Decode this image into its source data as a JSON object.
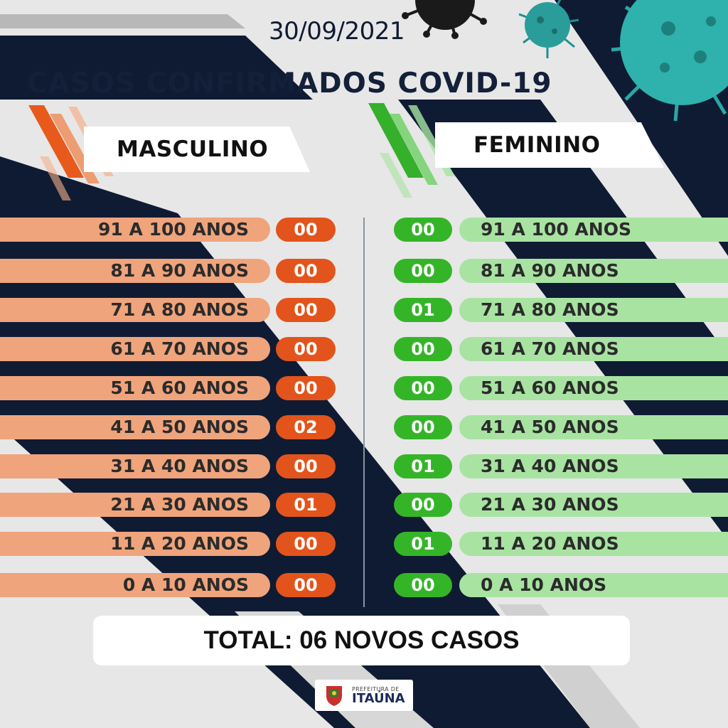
{
  "date": "30/09/2021",
  "title": "CASOS CONFIRMADOS COVID-19",
  "colors": {
    "male_bar": "#f0a47c",
    "male_pill": "#e2541b",
    "female_bar": "#a8e3a2",
    "female_pill": "#34b528",
    "navy": "#0f1b33"
  },
  "masculino": {
    "header": "MASCULINO",
    "rows": [
      {
        "age": "91 A 100 ANOS",
        "count": "00"
      },
      {
        "age": "81 A 90 ANOS",
        "count": "00"
      },
      {
        "age": "71 A 80 ANOS",
        "count": "00"
      },
      {
        "age": "61 A 70 ANOS",
        "count": "00"
      },
      {
        "age": "51 A 60 ANOS",
        "count": "00"
      },
      {
        "age": "41 A 50 ANOS",
        "count": "02"
      },
      {
        "age": "31 A 40 ANOS",
        "count": "00"
      },
      {
        "age": "21 A 30 ANOS",
        "count": "01"
      },
      {
        "age": "11 A 20 ANOS",
        "count": "00"
      },
      {
        "age": "0 A 10 ANOS",
        "count": "00"
      }
    ]
  },
  "feminino": {
    "header": "FEMININO",
    "rows": [
      {
        "age": "91 A 100 ANOS",
        "count": "00"
      },
      {
        "age": "81 A 90 ANOS",
        "count": "00"
      },
      {
        "age": "71 A 80 ANOS",
        "count": "01"
      },
      {
        "age": "61 A 70 ANOS",
        "count": "00"
      },
      {
        "age": "51 A 60 ANOS",
        "count": "00"
      },
      {
        "age": "41 A 50 ANOS",
        "count": "00"
      },
      {
        "age": "31 A 40 ANOS",
        "count": "01"
      },
      {
        "age": "21 A 30 ANOS",
        "count": "00"
      },
      {
        "age": "11 A 20 ANOS",
        "count": "01"
      },
      {
        "age": "0 A 10 ANOS",
        "count": "00"
      }
    ]
  },
  "total": "TOTAL: 06 NOVOS CASOS",
  "logo": {
    "prefix": "PREFEITURA DE",
    "city": "ITAÚNA",
    "icon": "city-crest-icon"
  }
}
